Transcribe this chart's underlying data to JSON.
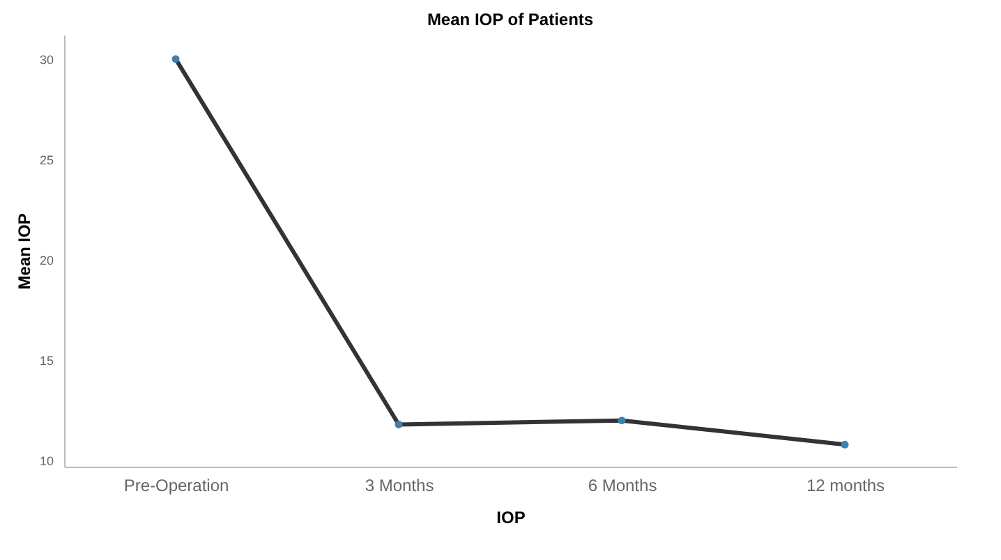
{
  "chart_data": {
    "type": "line",
    "title": "Mean IOP of Patients",
    "xlabel": "IOP",
    "ylabel": "Mean IOP",
    "categories": [
      "Pre-Operation",
      "3 Months",
      "6 Months",
      "12 months"
    ],
    "series": [
      {
        "color": "#333333",
        "values": [
          30.0,
          11.8,
          12.0,
          10.8
        ]
      }
    ],
    "ylim": [
      9.7,
      31.2
    ],
    "yticks": [
      10,
      15,
      20,
      25,
      30
    ],
    "grid": false,
    "marker": "circle",
    "line_style": "solid"
  }
}
